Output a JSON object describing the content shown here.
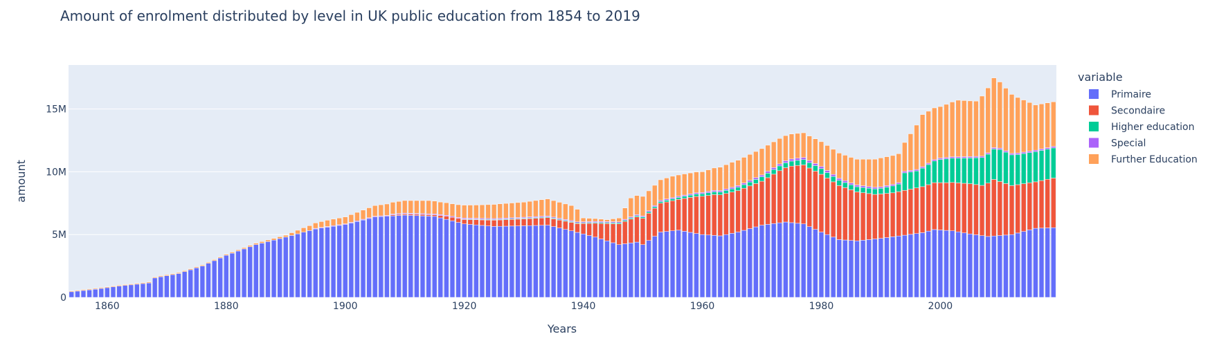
{
  "chart_data": {
    "type": "bar",
    "stacked": true,
    "title": "Amount of enrolment distributed by level in UK public education from 1854 to 2019",
    "xlabel": "Years",
    "ylabel": "amount",
    "xlim": [
      1854,
      2019
    ],
    "ylim": [
      0,
      18500000
    ],
    "x_ticks": [
      1860,
      1880,
      1900,
      1920,
      1940,
      1960,
      1980,
      2000
    ],
    "x_tick_labels": [
      "1860",
      "1880",
      "1900",
      "1920",
      "1940",
      "1960",
      "1980",
      "2000"
    ],
    "y_ticks": [
      0,
      5000000,
      10000000,
      15000000
    ],
    "y_tick_labels": [
      "0",
      "5M",
      "10M",
      "15M"
    ],
    "grid": true,
    "legend_title": "variable",
    "legend_position": "right",
    "bar_years": {
      "start": 1854,
      "end": 2019
    },
    "series": [
      {
        "name": "Primaire",
        "color": "#636efa",
        "keyframes": [
          [
            1854,
            450000
          ],
          [
            1858,
            650000
          ],
          [
            1862,
            900000
          ],
          [
            1866,
            1100000
          ],
          [
            1867,
            1150000
          ],
          [
            1868,
            1550000
          ],
          [
            1872,
            1900000
          ],
          [
            1876,
            2500000
          ],
          [
            1880,
            3350000
          ],
          [
            1885,
            4200000
          ],
          [
            1890,
            4800000
          ],
          [
            1895,
            5450000
          ],
          [
            1900,
            5800000
          ],
          [
            1905,
            6400000
          ],
          [
            1910,
            6550000
          ],
          [
            1915,
            6450000
          ],
          [
            1920,
            5850000
          ],
          [
            1925,
            5650000
          ],
          [
            1930,
            5700000
          ],
          [
            1934,
            5750000
          ],
          [
            1938,
            5300000
          ],
          [
            1942,
            4800000
          ],
          [
            1946,
            4200000
          ],
          [
            1949,
            4400000
          ],
          [
            1950,
            4200000
          ],
          [
            1953,
            5200000
          ],
          [
            1956,
            5350000
          ],
          [
            1960,
            5000000
          ],
          [
            1963,
            4900000
          ],
          [
            1966,
            5200000
          ],
          [
            1970,
            5750000
          ],
          [
            1974,
            6000000
          ],
          [
            1977,
            5850000
          ],
          [
            1980,
            5200000
          ],
          [
            1983,
            4600000
          ],
          [
            1986,
            4500000
          ],
          [
            1990,
            4700000
          ],
          [
            1994,
            4950000
          ],
          [
            1997,
            5150000
          ],
          [
            1999,
            5400000
          ],
          [
            2002,
            5300000
          ],
          [
            2005,
            5050000
          ],
          [
            2008,
            4850000
          ],
          [
            2012,
            5000000
          ],
          [
            2016,
            5500000
          ],
          [
            2019,
            5550000
          ]
        ]
      },
      {
        "name": "Secondaire",
        "color": "#ef553b",
        "keyframes": [
          [
            1854,
            0
          ],
          [
            1907,
            0
          ],
          [
            1908,
            80000
          ],
          [
            1915,
            120000
          ],
          [
            1917,
            250000
          ],
          [
            1920,
            350000
          ],
          [
            1925,
            500000
          ],
          [
            1930,
            550000
          ],
          [
            1934,
            600000
          ],
          [
            1937,
            650000
          ],
          [
            1939,
            700000
          ],
          [
            1942,
            1100000
          ],
          [
            1946,
            1650000
          ],
          [
            1948,
            1900000
          ],
          [
            1950,
            2100000
          ],
          [
            1953,
            2300000
          ],
          [
            1956,
            2450000
          ],
          [
            1959,
            2950000
          ],
          [
            1962,
            3250000
          ],
          [
            1966,
            3300000
          ],
          [
            1970,
            3500000
          ],
          [
            1973,
            4150000
          ],
          [
            1975,
            4500000
          ],
          [
            1977,
            4700000
          ],
          [
            1980,
            4600000
          ],
          [
            1983,
            4300000
          ],
          [
            1986,
            3900000
          ],
          [
            1989,
            3550000
          ],
          [
            1992,
            3500000
          ],
          [
            1995,
            3600000
          ],
          [
            1998,
            3700000
          ],
          [
            2001,
            3800000
          ],
          [
            2005,
            4000000
          ],
          [
            2007,
            4000000
          ],
          [
            2009,
            4500000
          ],
          [
            2012,
            3900000
          ],
          [
            2016,
            3700000
          ],
          [
            2019,
            3950000
          ]
        ]
      },
      {
        "name": "Higher education",
        "color": "#00cc96",
        "keyframes": [
          [
            1854,
            0
          ],
          [
            1919,
            0
          ],
          [
            1920,
            40000
          ],
          [
            1935,
            60000
          ],
          [
            1940,
            60000
          ],
          [
            1950,
            100000
          ],
          [
            1955,
            150000
          ],
          [
            1960,
            200000
          ],
          [
            1965,
            250000
          ],
          [
            1970,
            350000
          ],
          [
            1975,
            400000
          ],
          [
            1980,
            450000
          ],
          [
            1985,
            400000
          ],
          [
            1990,
            450000
          ],
          [
            1993,
            600000
          ],
          [
            1994,
            1400000
          ],
          [
            1996,
            1350000
          ],
          [
            2000,
            1850000
          ],
          [
            2005,
            2050000
          ],
          [
            2008,
            2300000
          ],
          [
            2010,
            2550000
          ],
          [
            2013,
            2400000
          ],
          [
            2016,
            2400000
          ],
          [
            2019,
            2400000
          ]
        ]
      },
      {
        "name": "Special",
        "color": "#ab63fa",
        "keyframes": [
          [
            1854,
            0
          ],
          [
            1894,
            0
          ],
          [
            1895,
            50000
          ],
          [
            1920,
            80000
          ],
          [
            1940,
            80000
          ],
          [
            1960,
            100000
          ],
          [
            1975,
            170000
          ],
          [
            1980,
            170000
          ],
          [
            1990,
            120000
          ],
          [
            2000,
            110000
          ],
          [
            2010,
            110000
          ],
          [
            2019,
            120000
          ]
        ]
      },
      {
        "name": "Further Education",
        "color": "#ffa15a",
        "keyframes": [
          [
            1854,
            60000
          ],
          [
            1880,
            80000
          ],
          [
            1890,
            150000
          ],
          [
            1893,
            350000
          ],
          [
            1897,
            500000
          ],
          [
            1900,
            550000
          ],
          [
            1905,
            850000
          ],
          [
            1910,
            1000000
          ],
          [
            1914,
            1050000
          ],
          [
            1916,
            1000000
          ],
          [
            1918,
            1000000
          ],
          [
            1922,
            1050000
          ],
          [
            1926,
            1150000
          ],
          [
            1930,
            1200000
          ],
          [
            1934,
            1350000
          ],
          [
            1938,
            1200000
          ],
          [
            1939,
            1000000
          ],
          [
            1940,
            300000
          ],
          [
            1944,
            150000
          ],
          [
            1946,
            300000
          ],
          [
            1948,
            1500000
          ],
          [
            1950,
            1550000
          ],
          [
            1955,
            1700000
          ],
          [
            1960,
            1650000
          ],
          [
            1965,
            2000000
          ],
          [
            1970,
            2100000
          ],
          [
            1974,
            2000000
          ],
          [
            1978,
            1950000
          ],
          [
            1982,
            2000000
          ],
          [
            1986,
            2050000
          ],
          [
            1990,
            2300000
          ],
          [
            1994,
            2300000
          ],
          [
            1997,
            4150000
          ],
          [
            2000,
            4100000
          ],
          [
            2003,
            4500000
          ],
          [
            2006,
            4400000
          ],
          [
            2009,
            5550000
          ],
          [
            2012,
            4700000
          ],
          [
            2016,
            3600000
          ],
          [
            2019,
            3550000
          ]
        ]
      }
    ]
  }
}
